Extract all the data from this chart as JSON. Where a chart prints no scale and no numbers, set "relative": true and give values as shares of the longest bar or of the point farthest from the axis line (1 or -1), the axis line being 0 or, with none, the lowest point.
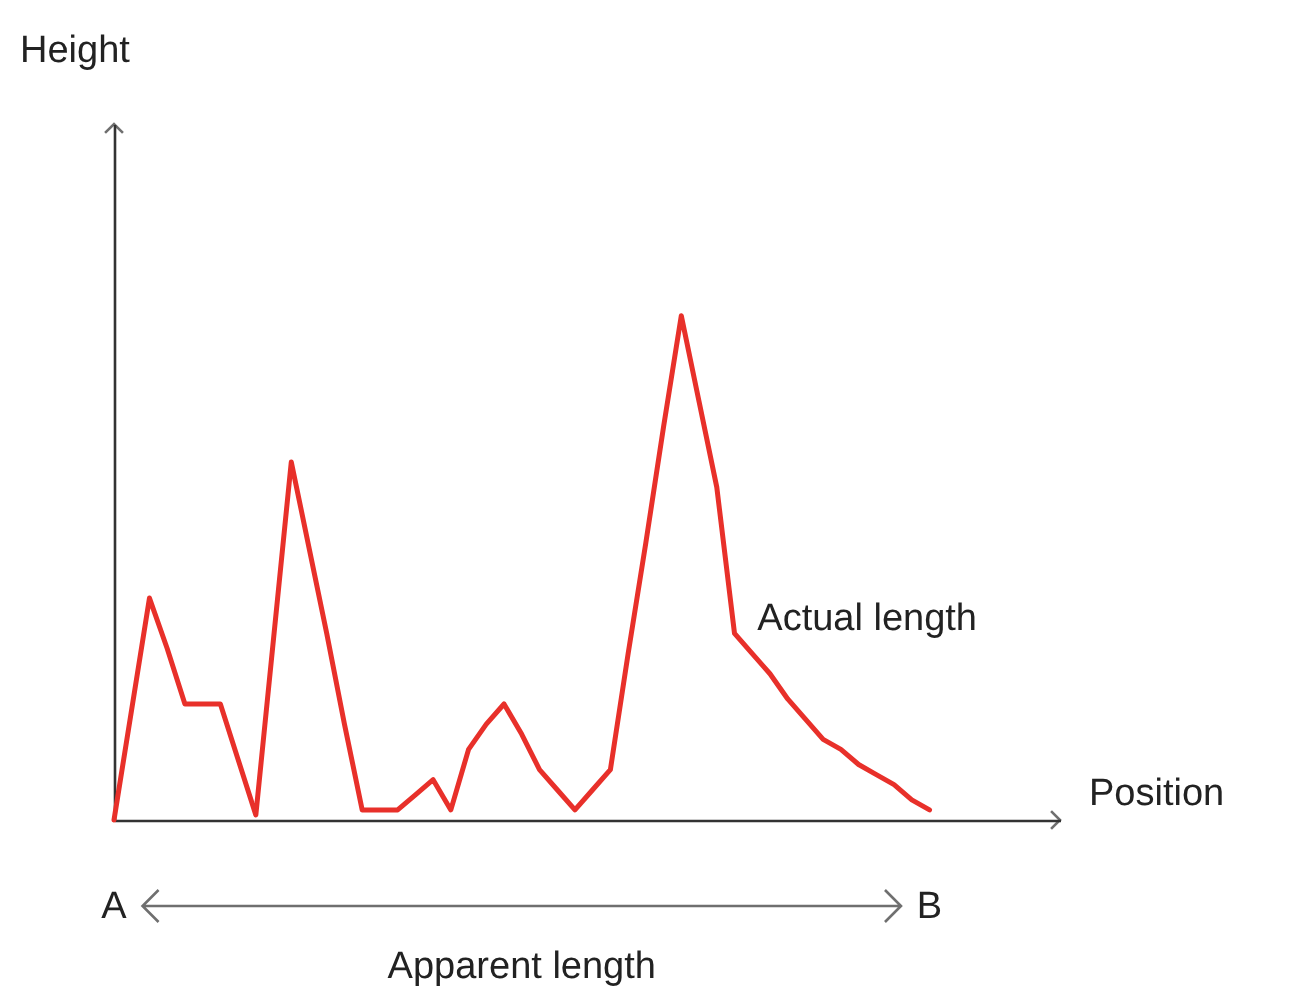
{
  "chart_data": {
    "type": "line",
    "xlabel": "Position",
    "relative": true,
    "categories": [
      null,
      null,
      null,
      null,
      null,
      null,
      null,
      null,
      null,
      null,
      null,
      null,
      null,
      null,
      null,
      null,
      null,
      null,
      null,
      null,
      null,
      null,
      null,
      null,
      null,
      null,
      null,
      null,
      null,
      null,
      null,
      null,
      null,
      null,
      null,
      null,
      null,
      null,
      null,
      null,
      null,
      null,
      null,
      null,
      null,
      null,
      null
    ],
    "series": [
      {
        "color": "#e8302a",
        "values": [
          0,
          0.22,
          0.44,
          0.34,
          0.23,
          0.23,
          0.23,
          0.12,
          0.01,
          0.36,
          0.71,
          0.54,
          0.37,
          0.19,
          0.02,
          0.02,
          0.02,
          0.05,
          0.08,
          0.02,
          0.14,
          0.19,
          0.23,
          0.17,
          0.1,
          0.06,
          0.02,
          0.06,
          0.1,
          0.33,
          0.55,
          0.78,
          1,
          0.83,
          0.66,
          0.37,
          0.33,
          0.29,
          0.24,
          0.2,
          0.16,
          0.14,
          0.11,
          0.09,
          0.07,
          0.04,
          0.02
        ]
      }
    ],
    "annotations": [
      "A",
      "B",
      "Apparent length",
      "Actual length",
      "Height"
    ],
    "marker": "none",
    "line_style": "solid"
  }
}
